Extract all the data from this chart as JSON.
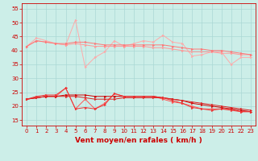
{
  "title": "",
  "xlabel": "Vent moyen/en rafales ( km/h )",
  "ylabel": "",
  "xlim": [
    -0.5,
    23.5
  ],
  "ylim": [
    13,
    57
  ],
  "yticks": [
    15,
    20,
    25,
    30,
    35,
    40,
    45,
    50,
    55
  ],
  "xticks": [
    0,
    1,
    2,
    3,
    4,
    5,
    6,
    7,
    8,
    9,
    10,
    11,
    12,
    13,
    14,
    15,
    16,
    17,
    18,
    19,
    20,
    21,
    22,
    23
  ],
  "bg_color": "#cceee8",
  "grid_color": "#aad8d4",
  "upper_lines": [
    {
      "color": "#ffaaaa",
      "values": [
        41.5,
        44.5,
        43.5,
        42.5,
        42.0,
        51.0,
        34.0,
        37.5,
        39.5,
        43.5,
        41.5,
        42.5,
        43.5,
        43.0,
        45.5,
        43.0,
        42.5,
        38.0,
        38.5,
        39.5,
        39.5,
        35.0,
        37.5,
        37.5
      ]
    },
    {
      "color": "#ff9999",
      "values": [
        41.5,
        43.5,
        43.0,
        42.5,
        42.0,
        42.5,
        42.0,
        41.5,
        41.5,
        41.5,
        41.5,
        41.5,
        41.5,
        41.0,
        41.0,
        40.5,
        40.0,
        39.5,
        39.5,
        39.5,
        39.0,
        39.0,
        38.5,
        38.5
      ]
    },
    {
      "color": "#ff7777",
      "values": [
        41.5,
        43.5,
        43.0,
        42.5,
        42.5,
        43.0,
        43.0,
        42.5,
        42.0,
        42.0,
        42.0,
        42.0,
        42.0,
        42.0,
        42.0,
        41.5,
        41.0,
        40.5,
        40.5,
        40.0,
        40.0,
        39.5,
        39.0,
        38.5
      ]
    }
  ],
  "lower_lines": [
    {
      "color": "#ff5555",
      "values": [
        22.5,
        23.0,
        23.5,
        23.5,
        26.5,
        19.0,
        22.5,
        19.0,
        21.0,
        24.5,
        23.5,
        23.5,
        23.5,
        23.5,
        22.5,
        21.5,
        21.0,
        20.0,
        19.0,
        19.0,
        19.0,
        19.0,
        18.0,
        18.0
      ]
    },
    {
      "color": "#cc0000",
      "values": [
        22.5,
        23.0,
        23.5,
        23.5,
        24.0,
        24.0,
        24.0,
        23.5,
        23.5,
        23.5,
        23.5,
        23.5,
        23.5,
        23.5,
        23.0,
        22.5,
        22.0,
        21.0,
        20.5,
        20.0,
        19.5,
        19.0,
        18.5,
        18.0
      ]
    },
    {
      "color": "#dd2222",
      "values": [
        22.5,
        23.0,
        23.5,
        23.5,
        23.5,
        23.5,
        23.0,
        22.5,
        22.5,
        22.5,
        23.0,
        23.0,
        23.0,
        23.0,
        23.0,
        22.5,
        22.0,
        21.5,
        21.0,
        20.5,
        20.0,
        19.5,
        19.0,
        18.5
      ]
    },
    {
      "color": "#ee3333",
      "values": [
        22.5,
        23.5,
        24.0,
        24.0,
        26.5,
        19.0,
        19.5,
        19.0,
        20.5,
        24.5,
        23.5,
        23.5,
        23.5,
        23.5,
        23.0,
        22.0,
        21.0,
        19.5,
        19.0,
        18.5,
        19.0,
        18.5,
        18.0,
        18.0
      ]
    }
  ],
  "marker": ">",
  "markersize": 2,
  "linewidth": 0.7,
  "tick_label_fontsize": 5,
  "xlabel_fontsize": 6.5,
  "tick_color": "#cc0000",
  "label_color": "#cc0000"
}
